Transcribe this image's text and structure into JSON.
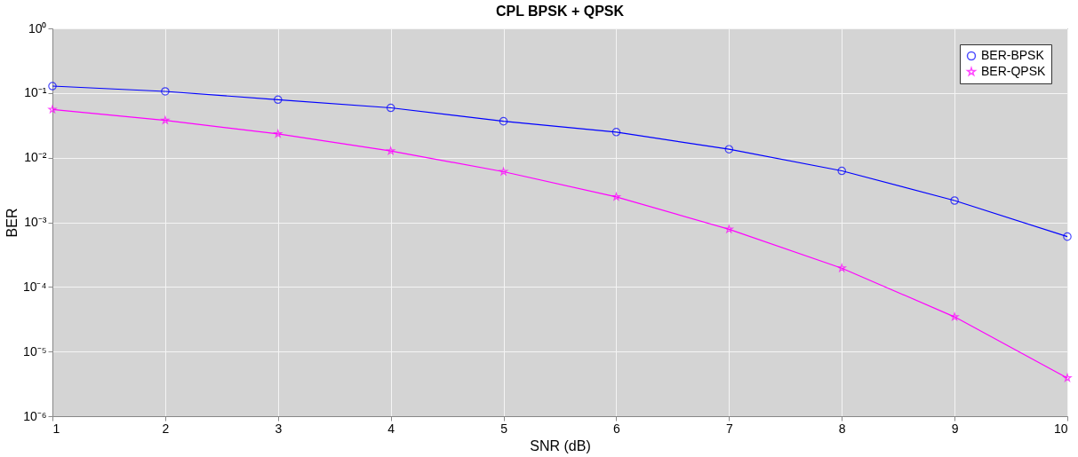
{
  "chart_data": {
    "type": "line",
    "title": "CPL BPSK + QPSK",
    "xlabel": "SNR (dB)",
    "ylabel": "BER",
    "x": [
      1,
      2,
      3,
      4,
      5,
      6,
      7,
      8,
      9,
      10
    ],
    "series": [
      {
        "name": "BER-BPSK",
        "color": "#0000ff",
        "marker": "circle",
        "values": [
          0.128,
          0.106,
          0.079,
          0.059,
          0.0366,
          0.0249,
          0.0135,
          0.00625,
          0.00217,
          0.0006
        ]
      },
      {
        "name": "BER-QPSK",
        "color": "#ff00ff",
        "marker": "star",
        "values": [
          0.0556,
          0.0378,
          0.0233,
          0.0127,
          0.00606,
          0.00247,
          0.00078,
          0.000195,
          3.44e-05,
          3.9e-06
        ]
      }
    ],
    "log": true,
    "xlim": [
      1,
      10
    ],
    "xticks": [
      1,
      2,
      3,
      4,
      5,
      6,
      7,
      8,
      9,
      10
    ],
    "ylim": [
      1e-06,
      1
    ],
    "yticks": [
      {
        "value": 1e-06,
        "label": "10⁻⁶"
      },
      {
        "value": 1e-05,
        "label": "10⁻⁵"
      },
      {
        "value": 0.0001,
        "label": "10⁻⁴"
      },
      {
        "value": 0.001,
        "label": "10⁻³"
      },
      {
        "value": 0.01,
        "label": "10⁻²"
      },
      {
        "value": 0.1,
        "label": "10⁻¹"
      },
      {
        "value": 1,
        "label": "10⁰"
      }
    ],
    "grid": true,
    "legend": "top right",
    "line_style": "solid"
  }
}
